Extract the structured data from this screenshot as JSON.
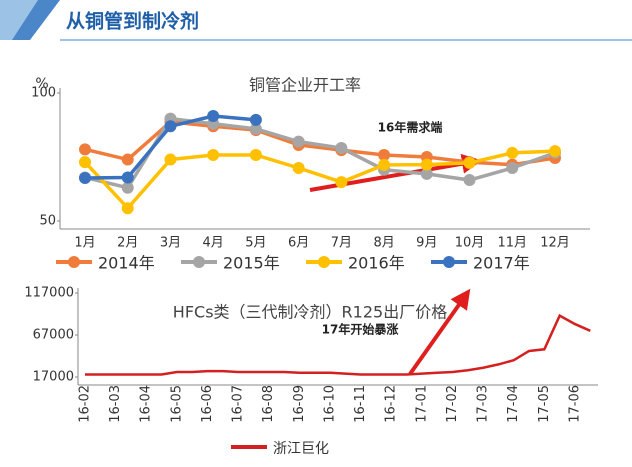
{
  "header": {
    "title": "从铜管到制冷剂"
  },
  "chart_data": [
    {
      "type": "line",
      "title": "铜管企业开工率",
      "y_label": "%",
      "annotation": "16年需求端",
      "categories": [
        "1月",
        "2月",
        "3月",
        "4月",
        "5月",
        "6月",
        "7月",
        "8月",
        "9月",
        "10月",
        "11月",
        "12月"
      ],
      "ylim": [
        50,
        100
      ],
      "yticks": [
        50,
        100
      ],
      "markers": true,
      "series": [
        {
          "name": "2014年",
          "color": "#f07c3c",
          "values": [
            78,
            74,
            88.7,
            87,
            85.5,
            79.7,
            77.7,
            75.8,
            75,
            73,
            72,
            74.6
          ]
        },
        {
          "name": "2015年",
          "color": "#a5a5a5",
          "values": [
            67,
            63,
            90,
            88,
            86,
            81,
            78.5,
            70,
            68.4,
            66,
            70.7,
            76.6
          ]
        },
        {
          "name": "2016年",
          "color": "#ffc000",
          "values": [
            73,
            55,
            74,
            75.8,
            75.8,
            70.7,
            65.2,
            71.9,
            72,
            72.7,
            76.6,
            77.3
          ]
        },
        {
          "name": "2017年",
          "color": "#3a72c0",
          "values": [
            66.8,
            67,
            87,
            91,
            89.5,
            null,
            null,
            null,
            null,
            null,
            null,
            null
          ]
        }
      ]
    },
    {
      "type": "line",
      "title": "HFCs类（三代制冷剂）R125出厂价格",
      "annotation": "17年开始暴涨",
      "categories": [
        "16-02",
        null,
        "16-03",
        null,
        "16-04",
        null,
        "16-05",
        null,
        "16-06",
        null,
        "16-07",
        null,
        "16-08",
        null,
        "16-09",
        null,
        "16-10",
        null,
        "16-11",
        null,
        "16-12",
        null,
        "17-01",
        null,
        "17-02",
        null,
        "17-03",
        null,
        "17-04",
        null,
        "17-05",
        null,
        "17-06",
        null
      ],
      "ylim": [
        17000,
        117000
      ],
      "yticks": [
        17000,
        67000,
        117000
      ],
      "markers": false,
      "series": [
        {
          "name": "浙江巨化",
          "color": "#d42020",
          "values": [
            20000,
            20000,
            20000,
            20000,
            20000,
            20000,
            23000,
            23000,
            24000,
            24000,
            23000,
            23000,
            23000,
            23000,
            22000,
            22000,
            22000,
            21000,
            20000,
            20000,
            20000,
            20000,
            21000,
            22000,
            23000,
            25000,
            28000,
            32000,
            37000,
            48000,
            50000,
            90000,
            80000,
            72000
          ]
        }
      ]
    }
  ]
}
